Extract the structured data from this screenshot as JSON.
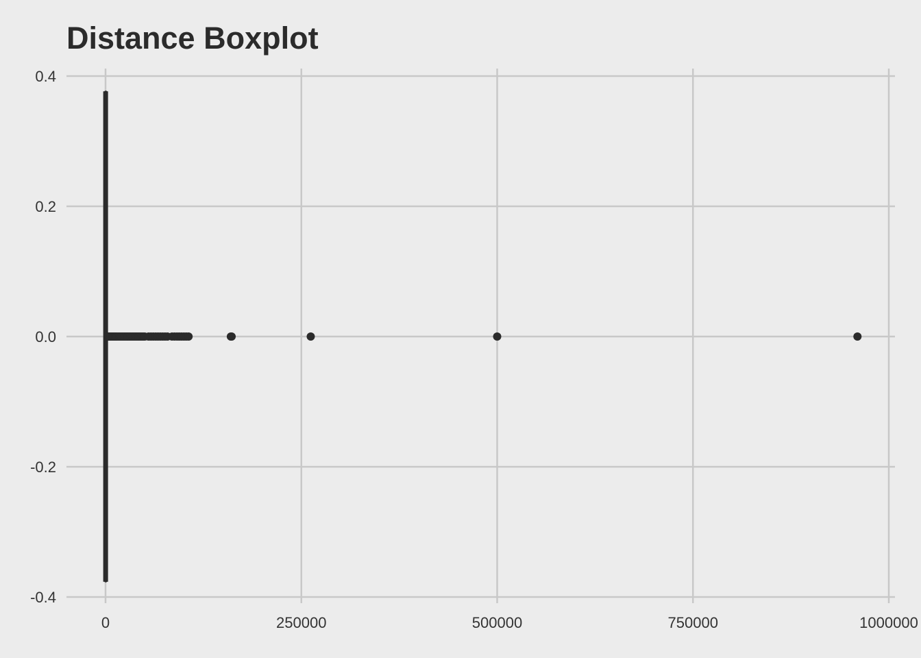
{
  "chart_data": {
    "type": "boxplot",
    "title": "Distance Boxplot",
    "xlabel": "",
    "ylabel": "",
    "xlim": [
      -4000,
      1003000
    ],
    "ylim": [
      -0.4,
      0.4
    ],
    "x_ticks": [
      0,
      250000,
      500000,
      750000,
      1000000
    ],
    "x_tick_labels": [
      "0",
      "250000",
      "500000",
      "750000",
      "1000000"
    ],
    "y_ticks": [
      -0.4,
      -0.2,
      0.0,
      0.2,
      0.4
    ],
    "y_tick_labels": [
      "-0.4",
      "-0.2",
      "0.0",
      "0.2",
      "0.4"
    ],
    "grid": true,
    "box": {
      "y_center": 0.0,
      "y_half_width": 0.375,
      "min": 0,
      "q1": 100,
      "median": 300,
      "q3": 1000,
      "whisker_low": 0,
      "whisker_high": 2500
    },
    "outliers": [
      3000,
      4000,
      5000,
      6500,
      8000,
      9500,
      11000,
      12500,
      14000,
      16000,
      18000,
      20000,
      22000,
      24000,
      26000,
      28000,
      30000,
      32000,
      34000,
      36000,
      38000,
      40000,
      42000,
      44000,
      46000,
      48000,
      50000,
      55000,
      58000,
      61000,
      64000,
      67000,
      70000,
      73000,
      76000,
      79000,
      85000,
      88000,
      91000,
      94000,
      97000,
      100000,
      103000,
      106000,
      160000,
      161000,
      262000,
      500000,
      960000
    ],
    "colors": {
      "background": "#ececec",
      "grid": "#c8c8c8",
      "marks": "#2b2b2b"
    }
  }
}
